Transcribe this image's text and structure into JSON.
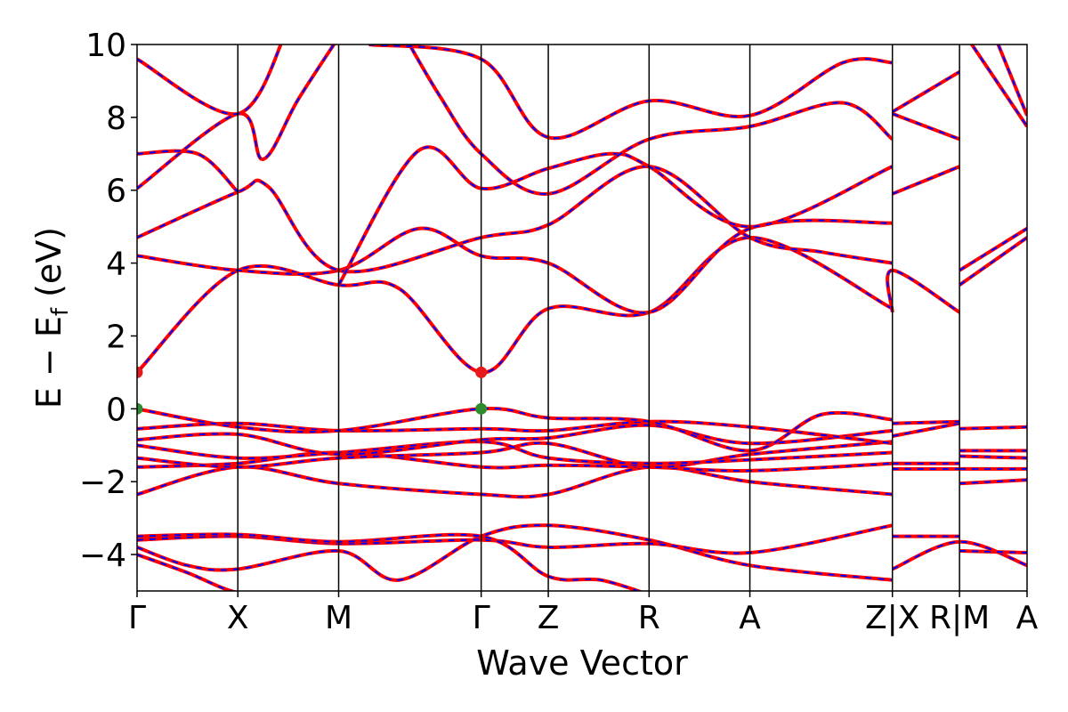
{
  "chart_data": {
    "type": "line",
    "title": "",
    "xlabel": "Wave Vector",
    "ylabel": "E − E",
    "ylabel_subscript": "f",
    "ylabel_unit": " (eV)",
    "ylim": [
      -5,
      10
    ],
    "yticks": [
      {
        "value": 10,
        "label": "10"
      },
      {
        "value": 8,
        "label": "8"
      },
      {
        "value": 6,
        "label": "6"
      },
      {
        "value": 4,
        "label": "4"
      },
      {
        "value": 2,
        "label": "2"
      },
      {
        "value": 0,
        "label": "0"
      },
      {
        "value": -2,
        "label": "−2"
      },
      {
        "value": -4,
        "label": "−4"
      }
    ],
    "kpath_points": [
      {
        "k": 0.0,
        "label": "Γ"
      },
      {
        "k": 1.0,
        "label": "X"
      },
      {
        "k": 2.0,
        "label": "M"
      },
      {
        "k": 3.414,
        "label": "Γ"
      },
      {
        "k": 4.08,
        "label": "Z"
      },
      {
        "k": 5.08,
        "label": "R"
      },
      {
        "k": 6.08,
        "label": "A"
      },
      {
        "k": 7.494,
        "label": "Z|X"
      },
      {
        "k": 8.16,
        "label": "R|M"
      },
      {
        "k": 8.83,
        "label": "A"
      }
    ],
    "series": [
      {
        "style": "solid",
        "color": "#ff0000"
      },
      {
        "style": "dashed",
        "color": "#0000ff"
      }
    ],
    "markers": [
      {
        "k": 0.0,
        "E": 1.0,
        "color": "#e41a1c",
        "role": "CBM"
      },
      {
        "k": 3.414,
        "E": 1.0,
        "color": "#e41a1c",
        "role": "CBM"
      },
      {
        "k": 0.0,
        "E": 0.0,
        "color": "#2e8b2e",
        "role": "VBM"
      },
      {
        "k": 3.414,
        "E": 0.0,
        "color": "#2e8b2e",
        "role": "VBM"
      }
    ],
    "bands": [
      [
        [
          0,
          -4.0
        ],
        [
          0.5,
          -4.5
        ],
        [
          1.0,
          -5.05
        ],
        [
          1.5,
          -5.1
        ]
      ],
      [
        [
          0,
          -3.8
        ],
        [
          0.5,
          -4.3
        ],
        [
          1.0,
          -4.4
        ],
        [
          2.0,
          -3.9
        ],
        [
          2.6,
          -4.7
        ],
        [
          3.414,
          -3.5
        ],
        [
          4.08,
          -3.2
        ],
        [
          5.08,
          -3.6
        ],
        [
          6.08,
          -4.3
        ],
        [
          7.494,
          -4.7
        ]
      ],
      [
        [
          0,
          -3.6
        ],
        [
          1.0,
          -3.5
        ],
        [
          2.0,
          -3.7
        ],
        [
          3.414,
          -3.6
        ],
        [
          4.08,
          -3.8
        ],
        [
          5.08,
          -3.7
        ],
        [
          6.08,
          -3.95
        ],
        [
          7.494,
          -3.2
        ]
      ],
      [
        [
          0,
          -3.5
        ],
        [
          1.0,
          -3.45
        ],
        [
          2.0,
          -3.65
        ],
        [
          3.414,
          -3.5
        ],
        [
          4.08,
          -4.6
        ],
        [
          4.6,
          -4.7
        ],
        [
          5.08,
          -5.1
        ]
      ],
      [
        [
          0,
          -2.35
        ],
        [
          1.0,
          -1.6
        ],
        [
          2.0,
          -2.05
        ],
        [
          3.414,
          -2.35
        ],
        [
          4.08,
          -2.35
        ],
        [
          5.08,
          -1.6
        ],
        [
          6.08,
          -2.0
        ],
        [
          7.494,
          -2.35
        ]
      ],
      [
        [
          0,
          -1.6
        ],
        [
          1.0,
          -1.5
        ],
        [
          2.0,
          -1.2
        ],
        [
          3.414,
          -1.6
        ],
        [
          4.08,
          -1.55
        ],
        [
          5.08,
          -1.6
        ],
        [
          6.08,
          -1.7
        ],
        [
          7.494,
          -1.5
        ]
      ],
      [
        [
          0,
          -1.35
        ],
        [
          1.0,
          -1.6
        ],
        [
          2.0,
          -1.35
        ],
        [
          3.414,
          -1.2
        ],
        [
          4.08,
          -0.95
        ],
        [
          5.08,
          -1.6
        ],
        [
          6.08,
          -1.25
        ],
        [
          7.494,
          -0.9
        ]
      ],
      [
        [
          0,
          -1.0
        ],
        [
          1.0,
          -1.35
        ],
        [
          2.0,
          -1.2
        ],
        [
          3.414,
          -0.9
        ],
        [
          4.08,
          -1.35
        ],
        [
          5.08,
          -1.5
        ],
        [
          6.08,
          -1.4
        ],
        [
          7.494,
          -1.2
        ]
      ],
      [
        [
          0,
          -0.85
        ],
        [
          1.0,
          -0.7
        ],
        [
          2.0,
          -1.25
        ],
        [
          3.414,
          -0.85
        ],
        [
          4.08,
          -0.8
        ],
        [
          5.08,
          -0.45
        ],
        [
          6.08,
          -0.95
        ],
        [
          7.494,
          -0.6
        ]
      ],
      [
        [
          0,
          -0.55
        ],
        [
          1.0,
          -0.4
        ],
        [
          2.0,
          -0.6
        ],
        [
          3.414,
          -0.55
        ],
        [
          4.08,
          -0.6
        ],
        [
          5.08,
          -0.35
        ],
        [
          6.08,
          -0.5
        ],
        [
          7.494,
          -0.95
        ]
      ],
      [
        [
          0,
          0.0
        ],
        [
          1.0,
          -0.5
        ],
        [
          2.0,
          -0.6
        ],
        [
          3.414,
          0.0
        ],
        [
          4.08,
          -0.25
        ],
        [
          5.08,
          -0.35
        ],
        [
          6.08,
          -1.15
        ],
        [
          6.8,
          -0.15
        ],
        [
          7.494,
          -0.3
        ]
      ],
      [
        [
          0,
          1.0
        ],
        [
          1.0,
          3.8
        ],
        [
          2.0,
          3.4
        ],
        [
          2.6,
          3.3
        ],
        [
          3.414,
          1.0
        ],
        [
          4.08,
          2.75
        ],
        [
          5.08,
          2.65
        ],
        [
          6.08,
          4.7
        ],
        [
          7.494,
          2.75
        ]
      ],
      [
        [
          0,
          4.2
        ],
        [
          1.0,
          3.8
        ],
        [
          2.0,
          3.8
        ],
        [
          2.8,
          4.95
        ],
        [
          3.414,
          4.2
        ],
        [
          4.08,
          4.0
        ],
        [
          5.08,
          2.65
        ],
        [
          6.08,
          4.95
        ],
        [
          7.494,
          5.1
        ]
      ],
      [
        [
          0,
          4.7
        ],
        [
          1.0,
          5.95
        ],
        [
          1.3,
          6.1
        ],
        [
          2.0,
          3.8
        ],
        [
          3.414,
          4.7
        ],
        [
          4.08,
          5.05
        ],
        [
          5.08,
          6.65
        ],
        [
          6.08,
          4.7
        ],
        [
          6.8,
          4.3
        ],
        [
          7.494,
          4.0
        ]
      ],
      [
        [
          0,
          6.05
        ],
        [
          1.0,
          8.1
        ],
        [
          1.25,
          6.85
        ],
        [
          1.6,
          8.5
        ],
        [
          2.0,
          10.2
        ]
      ],
      [
        [
          0,
          7.0
        ],
        [
          0.6,
          7.0
        ],
        [
          1.0,
          5.95
        ]
      ],
      [
        [
          0,
          9.6
        ],
        [
          1.0,
          8.1
        ],
        [
          1.5,
          10.5
        ]
      ],
      [
        [
          2.0,
          3.4
        ],
        [
          2.8,
          7.1
        ],
        [
          3.414,
          6.05
        ],
        [
          4.08,
          6.6
        ],
        [
          4.7,
          7.0
        ],
        [
          5.08,
          6.65
        ],
        [
          6.08,
          5.0
        ],
        [
          7.494,
          6.65
        ]
      ],
      [
        [
          2.6,
          10.5
        ],
        [
          3.0,
          8.6
        ],
        [
          3.414,
          7.0
        ],
        [
          4.08,
          5.9
        ],
        [
          5.08,
          7.4
        ],
        [
          6.08,
          7.75
        ],
        [
          7.0,
          8.4
        ],
        [
          7.494,
          7.4
        ]
      ],
      [
        [
          2.3,
          10.0
        ],
        [
          3.414,
          9.6
        ],
        [
          4.08,
          7.45
        ],
        [
          5.08,
          8.45
        ],
        [
          6.08,
          8.05
        ],
        [
          7.0,
          9.5
        ],
        [
          7.494,
          9.5
        ]
      ]
    ],
    "right_bands": [
      [
        [
          7.494,
          -4.4
        ],
        [
          8.16,
          -3.65
        ],
        [
          8.83,
          -4.3
        ]
      ],
      [
        [
          7.494,
          -3.5
        ],
        [
          8.16,
          -3.5
        ]
      ],
      [
        [
          7.494,
          -1.65
        ],
        [
          8.16,
          -1.65
        ]
      ],
      [
        [
          7.494,
          -1.5
        ],
        [
          8.16,
          -1.5
        ]
      ],
      [
        [
          7.494,
          -0.75
        ],
        [
          8.16,
          -0.4
        ]
      ],
      [
        [
          7.494,
          -0.4
        ],
        [
          8.16,
          -0.35
        ]
      ],
      [
        [
          7.494,
          2.65
        ],
        [
          7.494,
          3.8
        ],
        [
          8.16,
          2.65
        ]
      ],
      [
        [
          7.494,
          5.9
        ],
        [
          8.16,
          6.65
        ]
      ],
      [
        [
          7.494,
          8.15
        ],
        [
          8.16,
          9.25
        ]
      ],
      [
        [
          7.494,
          8.1
        ],
        [
          8.16,
          7.4
        ]
      ],
      [
        [
          8.16,
          -3.9
        ],
        [
          8.83,
          -3.95
        ]
      ],
      [
        [
          8.16,
          -2.05
        ],
        [
          8.83,
          -1.95
        ]
      ],
      [
        [
          8.16,
          -1.65
        ],
        [
          8.83,
          -1.65
        ]
      ],
      [
        [
          8.16,
          -1.3
        ],
        [
          8.83,
          -1.35
        ]
      ],
      [
        [
          8.16,
          -1.15
        ],
        [
          8.83,
          -1.15
        ]
      ],
      [
        [
          8.16,
          -0.55
        ],
        [
          8.83,
          -0.5
        ]
      ],
      [
        [
          8.16,
          3.4
        ],
        [
          8.83,
          4.7
        ]
      ],
      [
        [
          8.16,
          3.8
        ],
        [
          8.83,
          4.95
        ]
      ],
      [
        [
          8.16,
          10.5
        ],
        [
          8.83,
          7.75
        ]
      ],
      [
        [
          8.5,
          10.3
        ],
        [
          8.83,
          8.05
        ]
      ]
    ],
    "grid": false,
    "legend": "none"
  }
}
